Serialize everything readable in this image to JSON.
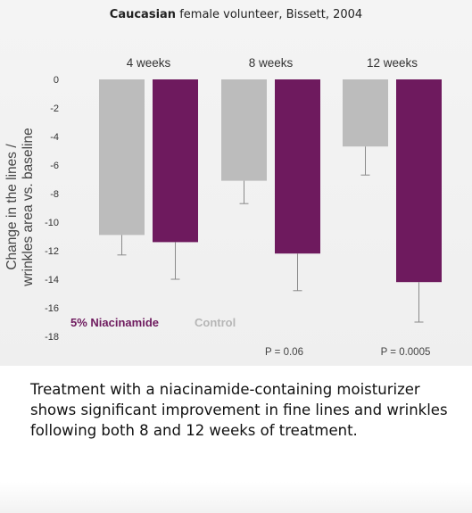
{
  "figure": {
    "title_bold": "Caucasian",
    "title_rest": "female volunteer, Bissett, 2004",
    "caption": "Treatment with a niacinamide-containing moisturizer shows significant improvement in fine lines and wrinkles following both 8 and 12 weeks of treatment."
  },
  "chart_data": {
    "type": "bar",
    "categories": [
      "4 weeks",
      "8 weeks",
      "12 weeks"
    ],
    "series": [
      {
        "name": "Control",
        "color": "#bcbcbc",
        "values": [
          -10.9,
          -7.1,
          -4.7
        ],
        "error": [
          1.4,
          1.6,
          2.0
        ]
      },
      {
        "name": "5% Niacinamide",
        "color": "#6e1a5e",
        "values": [
          -11.4,
          -12.2,
          -14.2
        ],
        "error": [
          2.6,
          2.6,
          2.8
        ]
      }
    ],
    "ylabel": "Change in the lines / wrinkles area vs. baseline",
    "ylim": [
      -18,
      0
    ],
    "yticks": [
      0,
      -2,
      -4,
      -6,
      -8,
      -10,
      -12,
      -14,
      -16,
      -18
    ],
    "p_values": [
      "",
      "P = 0.06",
      "P = 0.0005"
    ],
    "legend": {
      "placement": "bottom-left",
      "order": [
        "5% Niacinamide",
        "Control"
      ]
    },
    "grid": false
  }
}
